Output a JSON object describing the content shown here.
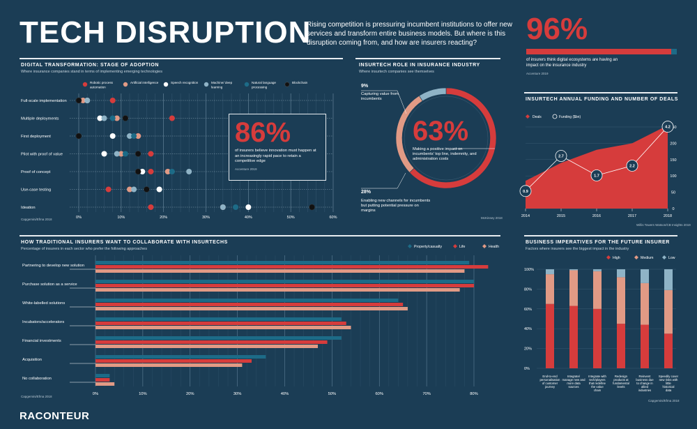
{
  "header": {
    "title": "TECH DISRUPTION",
    "intro": "Rising competition is pressuring incumbent institutions to offer new services and transform entire business models. But where is this disruption coming from, and how are insurers reacting?",
    "brand": "RACONTEUR"
  },
  "colors": {
    "background": "#1b3d55",
    "red": "#d63c3c",
    "salmon": "#e19a85",
    "white": "#ffffff",
    "lightblue": "#8fb3c6",
    "teal": "#1d6b87",
    "black": "#111111"
  },
  "stat96": {
    "value": "96%",
    "text": "of insurers think digital ecosystems are having an impact on the insurance industry",
    "source": "Accenture 2019"
  },
  "adoption": {
    "title": "DIGITAL TRANSFORMATION: STAGE OF ADOPTION",
    "subtitle": "Where insurance companies stand in terms of implementing emerging technologies",
    "source": "Capgemini/Efma 2018",
    "callout": {
      "value": "86%",
      "text": "of insurers believe innovation must happen at an increasingly rapid pace to retain a competitive edge",
      "source": "Accenture 2019"
    }
  },
  "role": {
    "title": "INSURTECH ROLE IN INSURANCE INDUSTRY",
    "subtitle": "Where insurtech companies see themselves",
    "source": "McKinsey 2018",
    "center": {
      "value": "63%",
      "text": "Making a positive impact on incumbents' top line, indemnity, and administration costs"
    },
    "label9": {
      "value": "9%",
      "text": "Capturing value from incumbents"
    },
    "label28": {
      "value": "28%",
      "text": "Enabling new channels for incumbents but putting potential pressure on margins"
    }
  },
  "funding": {
    "title": "INSURTECH ANNUAL FUNDING AND NUMBER OF DEALS",
    "source": "Willis Towers Watson/CB Insights 2019"
  },
  "collab": {
    "title": "HOW TRADITIONAL INSURERS WANT TO COLLABORATE WITH INSURTECHS",
    "subtitle": "Percentage of insurers in each sector who prefer the following approaches",
    "source": "Capgemini/Efma 2018"
  },
  "imperatives": {
    "title": "BUSINESS IMPERATIVES FOR THE FUTURE INSURER",
    "subtitle": "Factors where insurers see the biggest impact in the industry",
    "source": "Capgemini/Efma 2018"
  },
  "chart_data": [
    {
      "type": "scatter",
      "id": "stage-of-adoption",
      "stages": [
        "Full-scale implementation",
        "Multiple deployments",
        "First deployment",
        "Pilot with proof of value",
        "Proof of concept",
        "Use-case testing",
        "Ideation"
      ],
      "xticks": [
        "0%",
        "10%",
        "20%",
        "30%",
        "40%",
        "50%",
        "60%"
      ],
      "xlim": [
        0,
        60
      ],
      "series": [
        {
          "name": "Robotic process automation",
          "color": "#d63c3c",
          "values": [
            8,
            22,
            14,
            17,
            17,
            7,
            17
          ]
        },
        {
          "name": "Artificial intelligence",
          "color": "#e19a85",
          "values": [
            1,
            9,
            14,
            10,
            21,
            12,
            34
          ]
        },
        {
          "name": "Speech recognition",
          "color": "#ffffff",
          "values": [
            2,
            5,
            8,
            6,
            15,
            19,
            40
          ]
        },
        {
          "name": "Machine/ deep learning",
          "color": "#8fb3c6",
          "values": [
            2,
            6,
            12,
            9,
            26,
            13,
            34
          ]
        },
        {
          "name": "Natural language processing",
          "color": "#1d6b87",
          "values": [
            0,
            8,
            13,
            11,
            22,
            16,
            37
          ]
        },
        {
          "name": "Blockchain",
          "color": "#111111",
          "values": [
            0,
            11,
            0,
            14,
            14,
            16,
            55
          ]
        }
      ]
    },
    {
      "type": "pie",
      "id": "insurtech-role",
      "categories": [
        "Making a positive impact on incumbents' top line, indemnity, and administration costs",
        "Enabling new channels for incumbents but putting potential pressure on margins",
        "Capturing value from incumbents"
      ],
      "values": [
        63,
        28,
        9
      ]
    },
    {
      "type": "area",
      "id": "insurtech-funding",
      "x": [
        "2014",
        "2015",
        "2016",
        "2017",
        "2018"
      ],
      "series": [
        {
          "name": "Deals",
          "type": "area",
          "values": [
            85,
            140,
            180,
            200,
            255
          ]
        },
        {
          "name": "Funding ($bn)",
          "type": "line",
          "values": [
            0.9,
            2.7,
            1.7,
            2.2,
            4.2
          ]
        }
      ],
      "yticks_right": [
        "0",
        "50",
        "100",
        "150",
        "200",
        "250"
      ],
      "ylim": [
        0,
        250
      ]
    },
    {
      "type": "bar",
      "id": "collaboration",
      "categories": [
        "Partnering to develop new solution",
        "Purchase solution as a service",
        "White-labelled solutions",
        "Incubators/accelerators",
        "Financial investments",
        "Acquisition",
        "No collaboration"
      ],
      "series": [
        {
          "name": "Property/casualty",
          "color": "#1d6b87",
          "values": [
            79,
            80,
            64,
            52,
            52,
            36,
            3
          ]
        },
        {
          "name": "Life",
          "color": "#d63c3c",
          "values": [
            83,
            80,
            65,
            53,
            49,
            33,
            3
          ]
        },
        {
          "name": "Health",
          "color": "#e19a85",
          "values": [
            78,
            77,
            66,
            54,
            47,
            31,
            4
          ]
        }
      ],
      "xticks": [
        "0%",
        "10%",
        "20%",
        "30%",
        "40%",
        "50%",
        "60%",
        "70%",
        "80%"
      ],
      "xlim": [
        0,
        80
      ]
    },
    {
      "type": "bar",
      "id": "imperatives",
      "stacked": true,
      "categories": [
        "End-to-end personalisation of customer journey",
        "Integrate/ manage new and more data sources",
        "Integrate with tech/players that redefine the value chain",
        "Redesign products at fundamental levels",
        "Reinvent business due to change in allied industries",
        "Speedily cover new risks with little historical data"
      ],
      "series": [
        {
          "name": "High",
          "color": "#d63c3c",
          "values": [
            65,
            63,
            60,
            45,
            44,
            35
          ]
        },
        {
          "name": "Medium",
          "color": "#e19a85",
          "values": [
            30,
            36,
            38,
            47,
            42,
            44
          ]
        },
        {
          "name": "Low",
          "color": "#8fb3c6",
          "values": [
            5,
            1,
            2,
            8,
            14,
            21
          ]
        }
      ],
      "yticks": [
        "0%",
        "20%",
        "40%",
        "60%",
        "80%",
        "100%"
      ],
      "ylim": [
        0,
        100
      ]
    }
  ]
}
